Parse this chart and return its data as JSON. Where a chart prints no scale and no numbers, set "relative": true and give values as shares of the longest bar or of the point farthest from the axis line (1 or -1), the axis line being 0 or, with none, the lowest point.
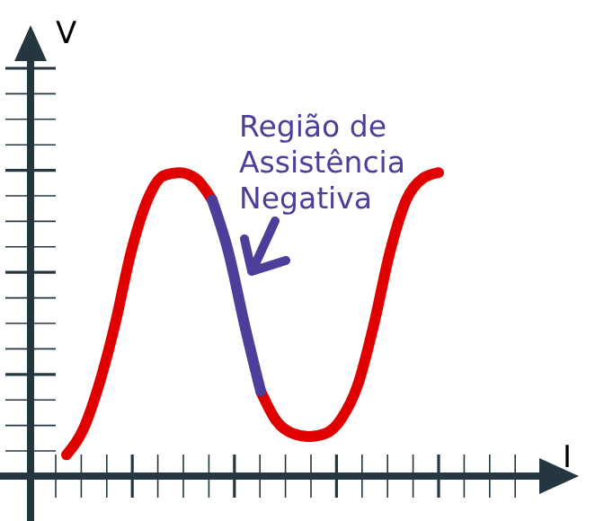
{
  "chart_data": {
    "type": "line",
    "relative": true,
    "xlabel": "I",
    "ylabel": "V",
    "annotations": [
      "Região de Assistência Negativa"
    ],
    "categories": [
      null,
      null,
      null,
      null,
      null,
      null,
      null,
      null,
      null,
      null,
      null,
      null,
      null,
      null,
      null,
      null,
      null,
      null,
      null,
      null,
      null,
      null,
      null,
      null
    ],
    "series": [
      {
        "color": "#e00000",
        "values": [
          0.07,
          0.15,
          0.3,
          0.5,
          0.74,
          0.91,
          0.99,
          1.0,
          0.98,
          0.91,
          null,
          null,
          0.28,
          0.18,
          0.14,
          0.13,
          0.14,
          0.19,
          0.3,
          0.5,
          0.74,
          0.91,
          0.98,
          1.0
        ]
      },
      {
        "color": "#4b3f9a",
        "values": [
          null,
          null,
          null,
          null,
          null,
          null,
          null,
          null,
          null,
          0.91,
          0.74,
          0.5,
          0.28,
          null,
          null,
          null,
          null,
          null,
          null,
          null,
          null,
          null,
          null,
          null
        ]
      }
    ],
    "marker": "none",
    "line_style": "solid",
    "grid": false,
    "legend": false
  }
}
